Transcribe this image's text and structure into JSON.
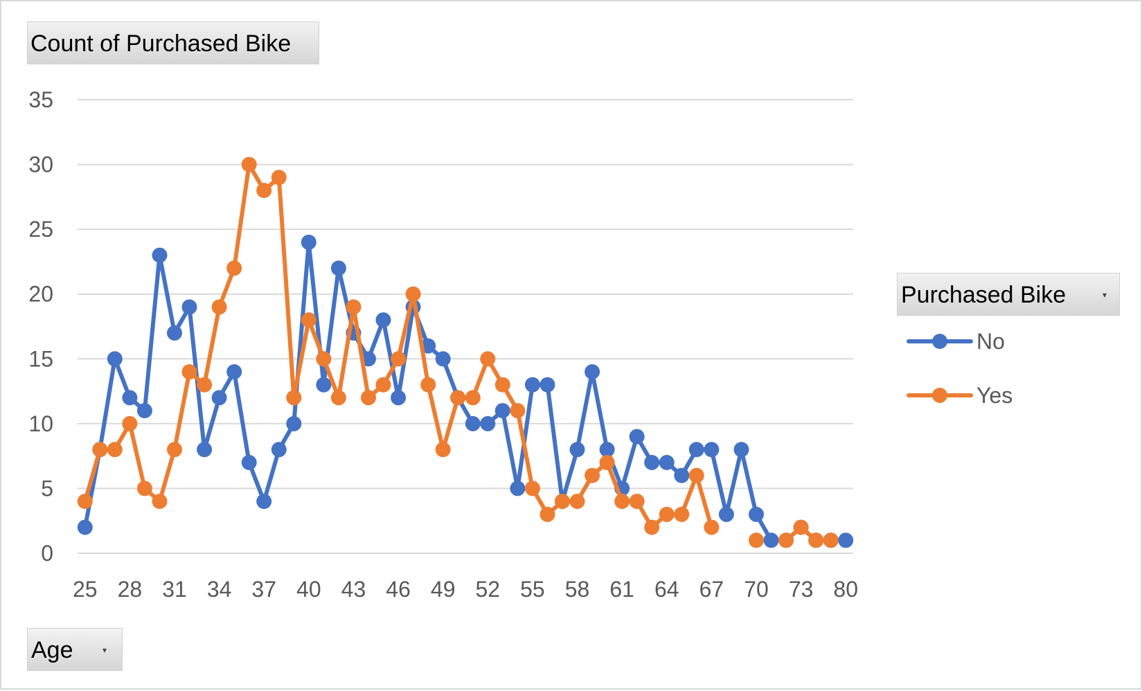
{
  "pivot": {
    "value_field": "Count of Purchased Bike",
    "legend_field": "Purchased Bike",
    "axis_field": "Age"
  },
  "chart_data": {
    "type": "line",
    "title": "",
    "xlabel": "",
    "ylabel": "",
    "categories": [
      25,
      26,
      27,
      28,
      29,
      30,
      31,
      32,
      33,
      34,
      35,
      36,
      37,
      38,
      39,
      40,
      41,
      42,
      43,
      44,
      45,
      46,
      47,
      48,
      49,
      50,
      51,
      52,
      53,
      54,
      55,
      56,
      57,
      58,
      59,
      60,
      61,
      62,
      63,
      64,
      65,
      66,
      67,
      68,
      69,
      70,
      71,
      72,
      73,
      74,
      78,
      80
    ],
    "x_tick_labels": [
      "25",
      "28",
      "31",
      "34",
      "37",
      "40",
      "43",
      "46",
      "49",
      "52",
      "55",
      "58",
      "61",
      "64",
      "67",
      "70",
      "73",
      "80"
    ],
    "ylim": [
      0,
      35
    ],
    "y_ticks": [
      0,
      5,
      10,
      15,
      20,
      25,
      30,
      35
    ],
    "grid": true,
    "legend_position": "right",
    "series": [
      {
        "name": "No",
        "color": "#4472c4",
        "values": [
          2,
          8,
          15,
          12,
          11,
          23,
          17,
          19,
          8,
          12,
          14,
          7,
          4,
          8,
          10,
          24,
          13,
          22,
          17,
          15,
          18,
          12,
          19,
          16,
          15,
          12,
          10,
          10,
          11,
          5,
          13,
          13,
          4,
          8,
          14,
          8,
          5,
          9,
          7,
          7,
          6,
          8,
          8,
          3,
          8,
          3,
          1,
          1,
          2,
          1,
          1,
          1
        ]
      },
      {
        "name": "Yes",
        "color": "#ed7d31",
        "values": [
          4,
          8,
          8,
          10,
          5,
          4,
          8,
          14,
          13,
          19,
          22,
          30,
          28,
          29,
          12,
          18,
          15,
          12,
          19,
          12,
          13,
          15,
          20,
          13,
          8,
          12,
          12,
          15,
          13,
          11,
          5,
          3,
          4,
          4,
          6,
          7,
          4,
          4,
          2,
          3,
          3,
          6,
          2,
          null,
          null,
          1,
          null,
          1,
          2,
          1,
          1,
          null
        ]
      }
    ]
  }
}
